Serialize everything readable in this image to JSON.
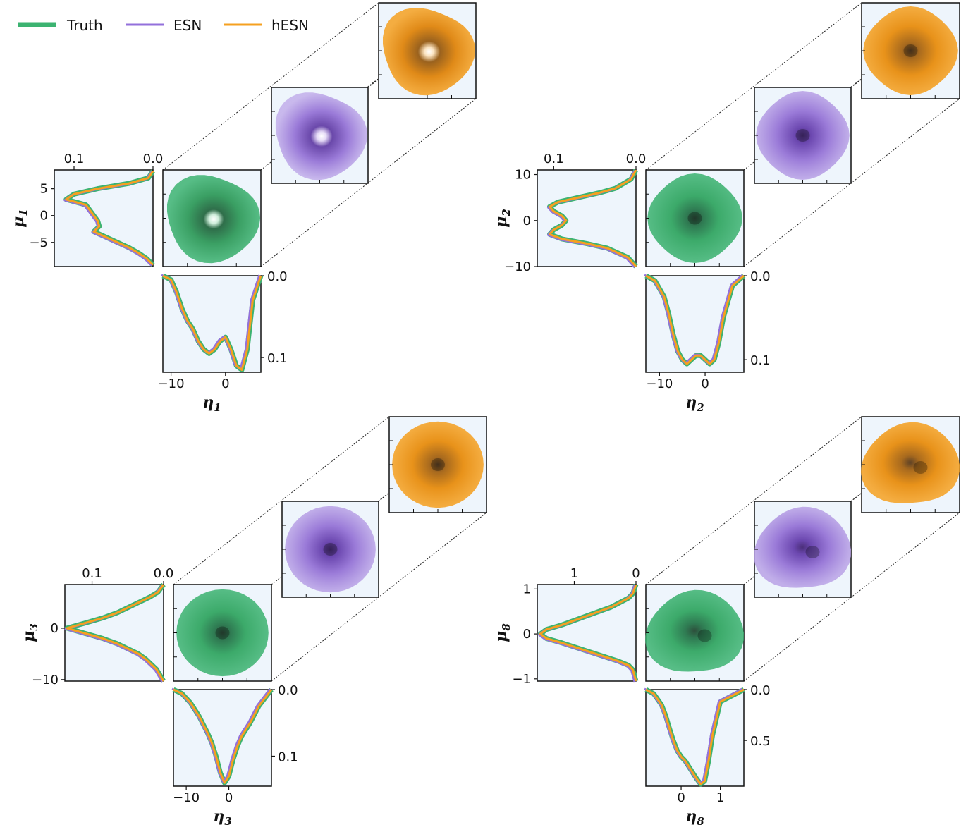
{
  "legend": {
    "entries": [
      {
        "label": "Truth",
        "color": "#3cb371"
      },
      {
        "label": "ESN",
        "color": "#9370db"
      },
      {
        "label": "hESN",
        "color": "#f5a020"
      }
    ]
  },
  "panel_colors": {
    "background": "#eef5fc",
    "truth_fill": "#3cb371",
    "truth_core": "#2e4f3c",
    "esn_fill": "#9370db",
    "esn_core": "#4b2f7a",
    "hesn_fill": "#f5a020",
    "hesn_core": "#5e4226"
  },
  "chart_data": [
    {
      "type": "line",
      "ylabel": {
        "base": "μ",
        "sub": "1"
      },
      "xlabel": {
        "base": "η",
        "sub": "1"
      },
      "ylim": [
        -9.5,
        8.5
      ],
      "yticks": [
        5,
        0,
        -5
      ],
      "ytick_labels": [
        "5",
        "0",
        "−5"
      ],
      "xlim": [
        -11.5,
        6.5
      ],
      "xticks": [
        -10,
        0
      ],
      "xtick_labels": [
        "−10",
        "0"
      ],
      "left_density_max": 0.125,
      "left_density_ticks": [
        0.1,
        0.0
      ],
      "left_density_tick_labels": [
        "0.1",
        "0.0"
      ],
      "bottom_density_max": 0.118,
      "bottom_density_ticks": [
        0.0,
        0.1
      ],
      "bottom_density_tick_labels": [
        "0.0",
        "0.1"
      ],
      "left_series": {
        "name": "Truth",
        "mu": [
          8.3,
          7,
          6,
          5,
          4,
          3,
          2,
          1,
          0,
          -1,
          -2,
          -3,
          -4,
          -5,
          -6,
          -7,
          -8,
          -9.2
        ],
        "density": [
          0.0,
          0.006,
          0.03,
          0.07,
          0.1,
          0.11,
          0.085,
          0.08,
          0.075,
          0.07,
          0.068,
          0.075,
          0.06,
          0.045,
          0.03,
          0.018,
          0.008,
          0.0
        ]
      },
      "bottom_series": {
        "name": "Truth",
        "eta": [
          -11.5,
          -10,
          -9,
          -8,
          -7,
          -6,
          -5,
          -4,
          -3,
          -2,
          -1,
          0,
          1,
          2,
          3,
          4,
          5,
          6.5
        ],
        "density": [
          0.0,
          0.005,
          0.02,
          0.04,
          0.055,
          0.065,
          0.08,
          0.09,
          0.095,
          0.09,
          0.08,
          0.075,
          0.09,
          0.11,
          0.115,
          0.09,
          0.03,
          0.0
        ]
      }
    },
    {
      "type": "line",
      "ylabel": {
        "base": "μ",
        "sub": "2"
      },
      "xlabel": {
        "base": "η",
        "sub": "2"
      },
      "ylim": [
        -10,
        11
      ],
      "yticks": [
        10,
        0,
        -10
      ],
      "ytick_labels": [
        "10",
        "0",
        "−10"
      ],
      "xlim": [
        -13,
        8.5
      ],
      "xticks": [
        -10,
        0
      ],
      "xtick_labels": [
        "−10",
        "0"
      ],
      "left_density_max": 0.12,
      "left_density_ticks": [
        0.1,
        0.0
      ],
      "left_density_tick_labels": [
        "0.1",
        "0.0"
      ],
      "bottom_density_max": 0.115,
      "bottom_density_ticks": [
        0.0,
        0.1
      ],
      "bottom_density_tick_labels": [
        "0.0",
        "0.1"
      ],
      "left_series": {
        "name": "Truth",
        "mu": [
          11,
          9,
          7,
          6,
          5,
          4,
          3,
          2,
          1,
          0,
          -1,
          -2,
          -3,
          -4,
          -5,
          -6,
          -8,
          -10
        ],
        "density": [
          0.0,
          0.006,
          0.025,
          0.045,
          0.07,
          0.095,
          0.105,
          0.1,
          0.09,
          0.085,
          0.09,
          0.1,
          0.105,
          0.09,
          0.06,
          0.035,
          0.01,
          0.0
        ]
      },
      "bottom_series": {
        "name": "Truth",
        "eta": [
          -13,
          -11,
          -9,
          -8,
          -7,
          -6,
          -5,
          -4,
          -3,
          -2,
          -1,
          0,
          1,
          2,
          3,
          4,
          6,
          8.5
        ],
        "density": [
          0.0,
          0.006,
          0.025,
          0.045,
          0.07,
          0.09,
          0.1,
          0.105,
          0.1,
          0.095,
          0.095,
          0.1,
          0.105,
          0.1,
          0.08,
          0.05,
          0.012,
          0.0
        ]
      }
    },
    {
      "type": "line",
      "ylabel": {
        "base": "μ",
        "sub": "3"
      },
      "xlabel": {
        "base": "η",
        "sub": "3"
      },
      "ylim": [
        -10.3,
        8.5
      ],
      "yticks": [
        0,
        -10
      ],
      "ytick_labels": [
        "0",
        "−10"
      ],
      "xlim": [
        -13,
        10
      ],
      "xticks": [
        -10,
        0
      ],
      "xtick_labels": [
        "−10",
        "0"
      ],
      "left_density_max": 0.138,
      "left_density_ticks": [
        0.1,
        0.0
      ],
      "left_density_tick_labels": [
        "0.1",
        "0.0"
      ],
      "bottom_density_max": 0.145,
      "bottom_density_ticks": [
        0.0,
        0.1
      ],
      "bottom_density_tick_labels": [
        "0.0",
        "0.1"
      ],
      "left_series": {
        "name": "Truth",
        "mu": [
          8.5,
          7,
          6,
          5,
          4,
          3,
          2,
          1,
          0,
          -1,
          -2,
          -3,
          -4,
          -5,
          -6,
          -8,
          -10.3
        ],
        "density": [
          0.0,
          0.008,
          0.02,
          0.035,
          0.05,
          0.065,
          0.085,
          0.11,
          0.135,
          0.11,
          0.085,
          0.065,
          0.05,
          0.035,
          0.025,
          0.01,
          0.0
        ]
      },
      "bottom_series": {
        "name": "Truth",
        "eta": [
          -13,
          -11,
          -9,
          -7,
          -5,
          -4,
          -3,
          -2,
          -1,
          0,
          1,
          2,
          3,
          5,
          7,
          10
        ],
        "density": [
          0.0,
          0.006,
          0.02,
          0.04,
          0.065,
          0.08,
          0.1,
          0.125,
          0.14,
          0.13,
          0.105,
          0.085,
          0.07,
          0.05,
          0.025,
          0.0
        ]
      }
    },
    {
      "type": "line",
      "ylabel": {
        "base": "μ",
        "sub": "8"
      },
      "xlabel": {
        "base": "η",
        "sub": "8"
      },
      "ylim": [
        -1.05,
        1.1
      ],
      "yticks": [
        1,
        0,
        -1
      ],
      "ytick_labels": [
        "1",
        "0",
        "−1"
      ],
      "xlim": [
        -0.9,
        1.6
      ],
      "xticks": [
        0,
        1
      ],
      "xtick_labels": [
        "0",
        "1"
      ],
      "left_density_max": 1.6,
      "left_density_ticks": [
        1,
        0
      ],
      "left_density_tick_labels": [
        "1",
        "0"
      ],
      "bottom_density_max": 0.95,
      "bottom_density_ticks": [
        0.0,
        0.5
      ],
      "bottom_density_tick_labels": [
        "0.0",
        "0.5"
      ],
      "left_series": {
        "name": "Truth",
        "mu": [
          1.1,
          0.9,
          0.8,
          0.6,
          0.4,
          0.2,
          0.1,
          0.0,
          -0.1,
          -0.2,
          -0.4,
          -0.6,
          -0.7,
          -0.8,
          -1.05
        ],
        "density": [
          0.0,
          0.05,
          0.12,
          0.4,
          0.8,
          1.2,
          1.45,
          1.55,
          1.45,
          1.2,
          0.75,
          0.3,
          0.12,
          0.05,
          0.0
        ]
      },
      "bottom_series": {
        "name": "Truth",
        "eta": [
          -0.9,
          -0.7,
          -0.5,
          -0.4,
          -0.3,
          -0.2,
          -0.1,
          0.0,
          0.1,
          0.2,
          0.3,
          0.4,
          0.5,
          0.6,
          0.7,
          0.8,
          1.0,
          1.6
        ],
        "density": [
          0.0,
          0.04,
          0.15,
          0.25,
          0.38,
          0.5,
          0.6,
          0.66,
          0.7,
          0.76,
          0.82,
          0.88,
          0.93,
          0.9,
          0.7,
          0.45,
          0.12,
          0.0
        ]
      }
    }
  ]
}
